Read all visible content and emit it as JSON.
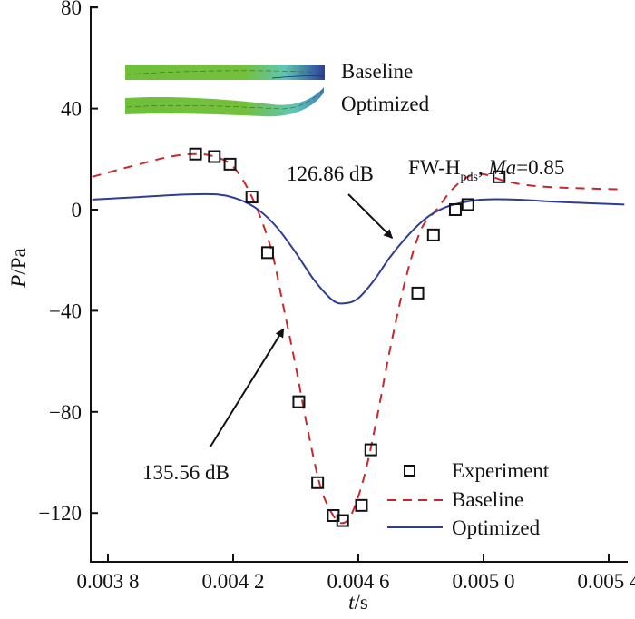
{
  "chart_data": {
    "type": "line",
    "title": "",
    "xlabel": "t/s",
    "xlabel_italic": "t",
    "xlabel_unit": "/s",
    "ylabel": "P/Pa",
    "ylabel_italic": "P",
    "ylabel_unit": "/Pa",
    "xlim": [
      0.00375,
      0.00545
    ],
    "ylim": [
      -140,
      80
    ],
    "x_ticks": [
      0.0038,
      0.0042,
      0.0046,
      0.005,
      0.0054
    ],
    "x_tick_labels": [
      "0.003 8",
      "0.004 2",
      "0.004 6",
      "0.005 0",
      "0.005 4"
    ],
    "y_ticks": [
      80,
      40,
      0,
      -40,
      -80,
      -120
    ],
    "y_tick_labels": [
      "80",
      "40",
      "0",
      "−40",
      "−80",
      "−120"
    ],
    "grid": false,
    "legend_position": "bottom-right",
    "legend": [
      "Experiment",
      "Baseline",
      "Optimized"
    ],
    "series": [
      {
        "name": "Experiment",
        "style": "square-markers",
        "color": "#111111",
        "x": [
          0.00408,
          0.00414,
          0.00419,
          0.00426,
          0.00431,
          0.00441,
          0.00447,
          0.00452,
          0.00455,
          0.00461,
          0.00464,
          0.00479,
          0.00484,
          0.00491,
          0.00495,
          0.00505
        ],
        "y": [
          22,
          21,
          18,
          5,
          -17,
          -76,
          -108,
          -121,
          -123,
          -117,
          -95,
          -33,
          -10,
          0,
          2,
          13
        ]
      },
      {
        "name": "Baseline",
        "style": "dashed",
        "color": "#c8282d",
        "x": [
          0.00375,
          0.0039,
          0.004,
          0.00408,
          0.00414,
          0.0042,
          0.00426,
          0.00432,
          0.00436,
          0.0044,
          0.00444,
          0.00448,
          0.00452,
          0.00455,
          0.00458,
          0.00462,
          0.00466,
          0.0047,
          0.00475,
          0.0048,
          0.00485,
          0.0049,
          0.00495,
          0.005,
          0.00508,
          0.0052,
          0.00545
        ],
        "y": [
          13,
          18,
          21,
          22,
          21,
          17,
          5,
          -15,
          -38,
          -62,
          -88,
          -110,
          -121,
          -124,
          -120,
          -105,
          -82,
          -56,
          -28,
          -8,
          0,
          8,
          13,
          14,
          11,
          9,
          8
        ]
      },
      {
        "name": "Optimized",
        "style": "solid",
        "color": "#2e3c92",
        "x": [
          0.00375,
          0.0039,
          0.00405,
          0.00415,
          0.00422,
          0.00428,
          0.00434,
          0.0044,
          0.00446,
          0.00452,
          0.00456,
          0.0046,
          0.00465,
          0.0047,
          0.00476,
          0.00482,
          0.00488,
          0.00494,
          0.005,
          0.0051,
          0.00525,
          0.00545
        ],
        "y": [
          4,
          5,
          6,
          6,
          4,
          0,
          -7,
          -17,
          -28,
          -36,
          -37,
          -35,
          -28,
          -19,
          -10,
          -3,
          1,
          3,
          4,
          4,
          3,
          2
        ]
      }
    ],
    "annotations": [
      {
        "text": "126.86 dB",
        "series": "Optimized",
        "arrow_to": [
          0.00472,
          -13
        ]
      },
      {
        "text": "135.56 dB",
        "series": "Baseline",
        "arrow_to": [
          0.00437,
          -45
        ]
      },
      {
        "text_main": "FW-H",
        "text_sub": "pds",
        "text_sep": ", ",
        "text_italic": "Ma",
        "text_value": "=0.85"
      }
    ],
    "inset": {
      "description": "airfoil contour thumbnails",
      "labels": [
        "Baseline",
        "Optimized"
      ],
      "colors": {
        "base": "#6fbf3a",
        "mid": "#5fc6b7",
        "low": "#2c3f96"
      }
    }
  }
}
